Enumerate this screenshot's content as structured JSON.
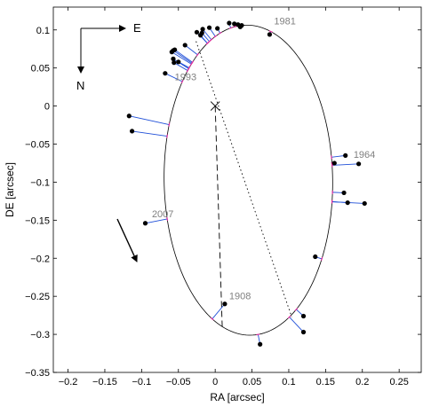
{
  "chart_data": {
    "type": "scatter",
    "xlabel": "RA [arcsec]",
    "ylabel": "DE [arcsec]",
    "xlim": [
      -0.22,
      0.28
    ],
    "ylim": [
      -0.35,
      0.13
    ],
    "xticks": [
      -0.2,
      -0.15,
      -0.1,
      -0.05,
      0,
      0.05,
      0.1,
      0.15,
      0.2,
      0.25
    ],
    "yticks": [
      -0.35,
      -0.3,
      -0.25,
      -0.2,
      -0.15,
      -0.1,
      -0.05,
      0,
      0.05,
      0.1
    ],
    "xtick_labels": [
      "−0.2",
      "−0.15",
      "−0.1",
      "−0.05",
      "0",
      "0.05",
      "0.1",
      "0.15",
      "0.2",
      "0.25"
    ],
    "ytick_labels": [
      "−0.35",
      "−0.3",
      "−0.25",
      "−0.2",
      "−0.15",
      "−0.1",
      "−0.05",
      "0",
      "0.05",
      "0.1"
    ],
    "grid": false,
    "primary": [
      0,
      0
    ],
    "orbit": {
      "center": [
        0.0451,
        -0.0974
      ],
      "semi_axes": [
        0.1145,
        0.2037
      ],
      "rotation_deg": 0.9
    },
    "line_of_nodes": [
      [
        -0.026,
        0.085
      ],
      [
        0.104,
        -0.277
      ]
    ],
    "periastron_line": [
      [
        0,
        0
      ],
      [
        0.0096,
        -0.2912
      ]
    ],
    "observations": [
      {
        "x": -0.008,
        "y": 0.103
      },
      {
        "x": 0.003,
        "y": 0.102
      },
      {
        "x": 0.019,
        "y": 0.109
      },
      {
        "x": 0.026,
        "y": 0.108
      },
      {
        "x": 0.031,
        "y": 0.107
      },
      {
        "x": 0.034,
        "y": 0.104
      },
      {
        "x": 0.036,
        "y": 0.106
      },
      {
        "x": 0.074,
        "y": 0.094
      },
      {
        "x": -0.017,
        "y": 0.101
      },
      {
        "x": -0.018,
        "y": 0.096
      },
      {
        "x": -0.02,
        "y": 0.093
      },
      {
        "x": -0.025,
        "y": 0.097
      },
      {
        "x": -0.041,
        "y": 0.08
      },
      {
        "x": -0.057,
        "y": 0.073
      },
      {
        "x": -0.059,
        "y": 0.071
      },
      {
        "x": -0.055,
        "y": 0.074
      },
      {
        "x": -0.057,
        "y": 0.062
      },
      {
        "x": -0.05,
        "y": 0.058
      },
      {
        "x": -0.056,
        "y": 0.057
      },
      {
        "x": -0.068,
        "y": 0.043
      },
      {
        "x": -0.117,
        "y": -0.013
      },
      {
        "x": -0.113,
        "y": -0.033
      },
      {
        "x": -0.095,
        "y": -0.154
      },
      {
        "x": 0.177,
        "y": -0.065
      },
      {
        "x": 0.195,
        "y": -0.076
      },
      {
        "x": 0.162,
        "y": -0.075
      },
      {
        "x": 0.175,
        "y": -0.114
      },
      {
        "x": 0.18,
        "y": -0.127
      },
      {
        "x": 0.203,
        "y": -0.128
      },
      {
        "x": 0.136,
        "y": -0.198
      },
      {
        "x": 0.013,
        "y": -0.26
      },
      {
        "x": 0.12,
        "y": -0.276
      },
      {
        "x": 0.12,
        "y": -0.297
      },
      {
        "x": 0.061,
        "y": -0.313
      }
    ],
    "year_labels": [
      {
        "text": "1981",
        "x": 0.08,
        "y": 0.107
      },
      {
        "text": "1993",
        "x": -0.055,
        "y": 0.034
      },
      {
        "text": "1964",
        "x": 0.188,
        "y": -0.068
      },
      {
        "text": "2007",
        "x": -0.086,
        "y": -0.146
      },
      {
        "text": "1908",
        "x": 0.019,
        "y": -0.254
      }
    ],
    "colors": {
      "residual": "#1f4fd8",
      "predicted": "#e0309a",
      "year_label": "#808080"
    }
  },
  "compass": {
    "east": "E",
    "north": "N"
  }
}
